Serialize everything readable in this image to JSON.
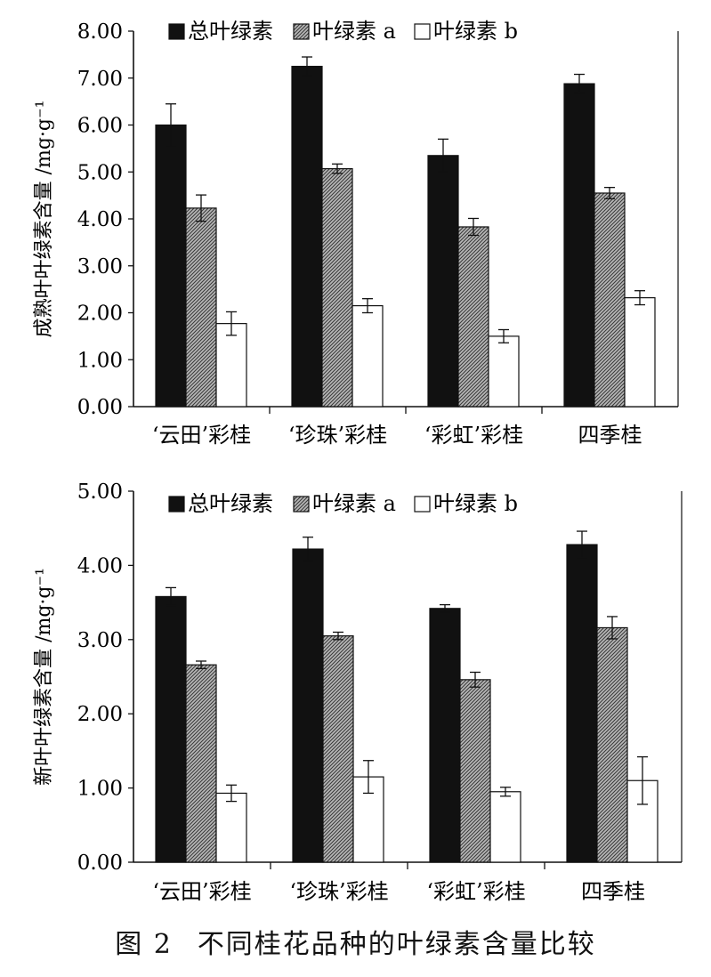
{
  "figure": {
    "label": "图 2",
    "caption": "不同桂花品种的叶绿素含量比较"
  },
  "colors": {
    "total": "#111111",
    "chl_a": "#8a8a8a",
    "chl_b": "#ffffff"
  },
  "chart_data": [
    {
      "type": "bar",
      "title": "",
      "ylabel": "成熟叶叶绿素含量 /mg·g⁻¹",
      "xlabel": "",
      "categories": [
        "‘云田’彩桂",
        "‘珍珠’彩桂",
        "‘彩虹’彩桂",
        "四季桂"
      ],
      "ylim": [
        0,
        8
      ],
      "yticks": [
        "0.00",
        "1.00",
        "2.00",
        "3.00",
        "4.00",
        "5.00",
        "6.00",
        "7.00",
        "8.00"
      ],
      "legend_position": "top",
      "grid": false,
      "series": [
        {
          "name": "总叶绿素",
          "values": [
            6.0,
            7.25,
            5.35,
            6.88
          ],
          "errors": [
            0.45,
            0.2,
            0.35,
            0.2
          ]
        },
        {
          "name": "叶绿素 a",
          "values": [
            4.23,
            5.07,
            3.83,
            4.55
          ],
          "errors": [
            0.28,
            0.1,
            0.18,
            0.12
          ]
        },
        {
          "name": "叶绿素 b",
          "values": [
            1.77,
            2.15,
            1.5,
            2.32
          ],
          "errors": [
            0.25,
            0.15,
            0.14,
            0.15
          ]
        }
      ]
    },
    {
      "type": "bar",
      "title": "",
      "ylabel": "新叶叶绿素含量 /mg·g⁻¹",
      "xlabel": "",
      "categories": [
        "‘云田’彩桂",
        "‘珍珠’彩桂",
        "‘彩虹’彩桂",
        "四季桂"
      ],
      "ylim": [
        0,
        5
      ],
      "yticks": [
        "0.00",
        "1.00",
        "2.00",
        "3.00",
        "4.00",
        "5.00"
      ],
      "legend_position": "top",
      "grid": false,
      "series": [
        {
          "name": "总叶绿素",
          "values": [
            3.58,
            4.22,
            3.42,
            4.28
          ],
          "errors": [
            0.12,
            0.16,
            0.05,
            0.18
          ]
        },
        {
          "name": "叶绿素 a",
          "values": [
            2.66,
            3.05,
            2.46,
            3.16
          ],
          "errors": [
            0.05,
            0.05,
            0.1,
            0.15
          ]
        },
        {
          "name": "叶绿素 b",
          "values": [
            0.93,
            1.15,
            0.95,
            1.1
          ],
          "errors": [
            0.11,
            0.22,
            0.06,
            0.32
          ]
        }
      ]
    }
  ]
}
